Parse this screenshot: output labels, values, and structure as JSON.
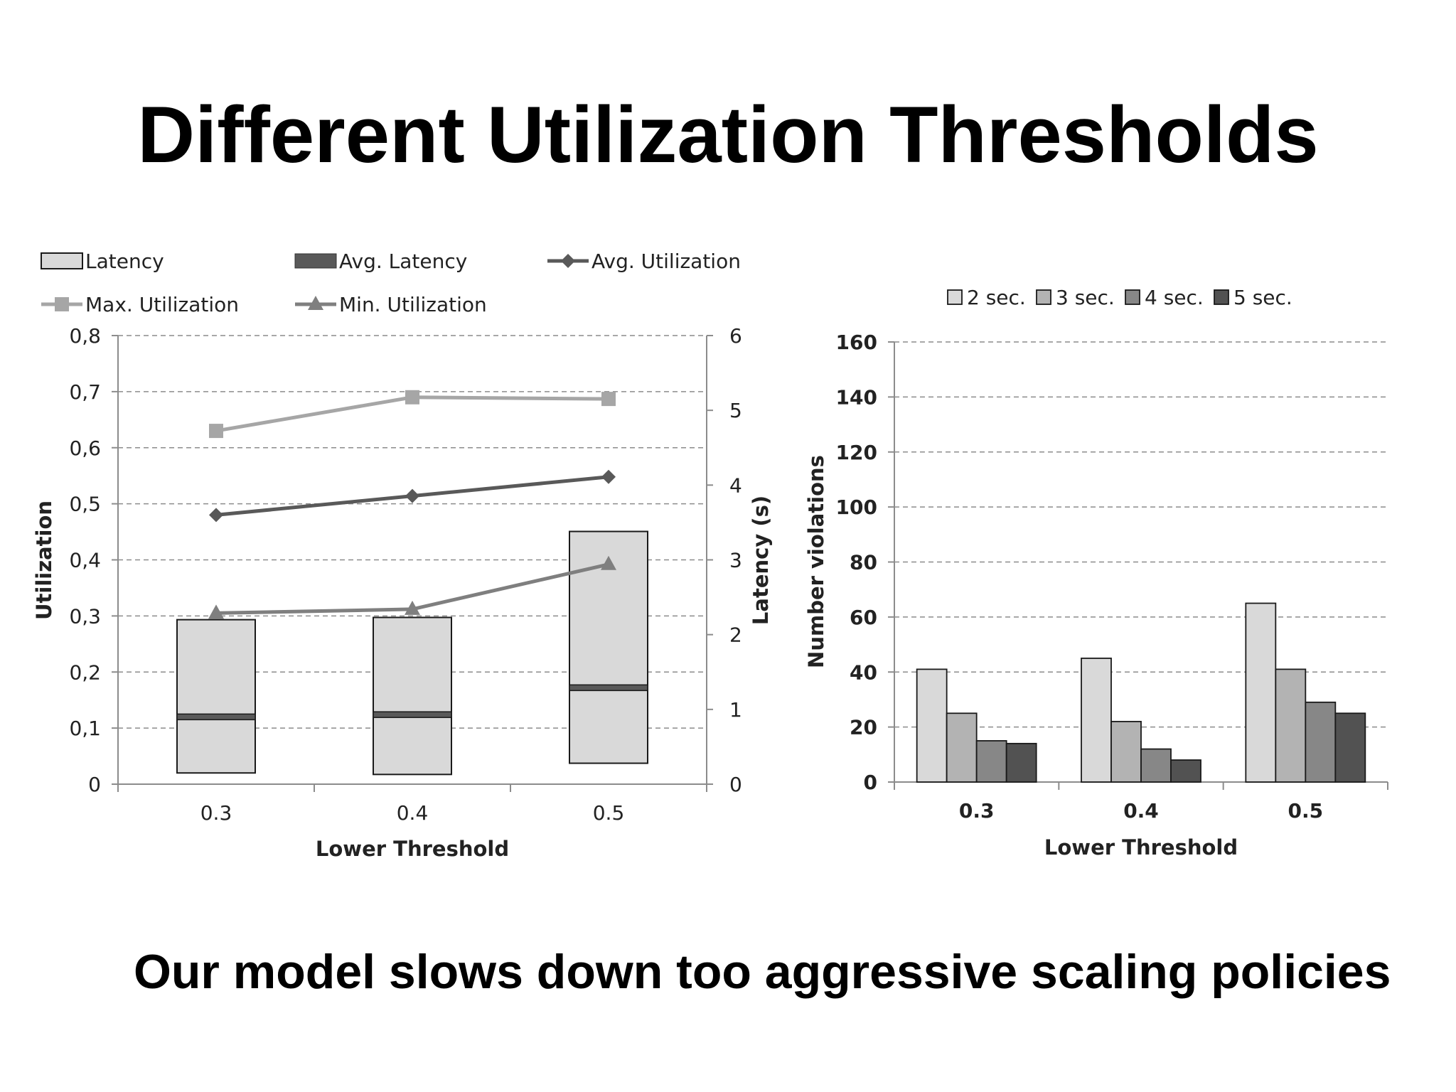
{
  "slide": {
    "title": "Different Utilization Thresholds",
    "caption": "Our model slows down too aggressive scaling policies"
  },
  "colors": {
    "latency_box": "#d9d9d9",
    "avg_latency": "#595959",
    "avg_utilization": "#595959",
    "max_utilization": "#a6a6a6",
    "min_utilization": "#7f7f7f",
    "bar_2sec": "#d9d9d9",
    "bar_3sec": "#b3b3b3",
    "bar_4sec": "#878787",
    "bar_5sec": "#525252"
  },
  "chart_data": [
    {
      "type": "bar",
      "xlabel": "Lower Threshold",
      "ylabel": "Utilization",
      "y2label": "Latency (s)",
      "categories": [
        "0.3",
        "0.4",
        "0.5"
      ],
      "ylim": [
        0,
        0.8
      ],
      "y_ticks": [
        "0",
        "0,1",
        "0,2",
        "0,3",
        "0,4",
        "0,5",
        "0,6",
        "0,7",
        "0,8"
      ],
      "y2lim": [
        0,
        6
      ],
      "y2_ticks": [
        "0",
        "1",
        "2",
        "3",
        "4",
        "5",
        "6"
      ],
      "grid": true,
      "legend_position": "top",
      "legend": [
        "Latency",
        "Avg. Latency",
        "Avg. Utilization",
        "Max. Utilization",
        "Min. Utilization"
      ],
      "latency_range": [
        {
          "low": 0.15,
          "high": 2.2
        },
        {
          "low": 0.13,
          "high": 2.23
        },
        {
          "low": 0.28,
          "high": 3.38
        }
      ],
      "avg_latency": [
        0.9,
        0.93,
        1.29
      ],
      "series": [
        {
          "name": "Avg. Utilization",
          "axis": "left",
          "values": [
            0.48,
            0.514,
            0.548
          ]
        },
        {
          "name": "Max. Utilization",
          "axis": "left",
          "values": [
            0.63,
            0.69,
            0.687
          ]
        },
        {
          "name": "Min. Utilization",
          "axis": "left",
          "values": [
            0.305,
            0.312,
            0.392
          ]
        }
      ]
    },
    {
      "type": "bar",
      "xlabel": "Lower Threshold",
      "ylabel": "Number violations",
      "categories": [
        "0.3",
        "0.4",
        "0.5"
      ],
      "ylim": [
        0,
        160
      ],
      "y_ticks": [
        "0",
        "20",
        "40",
        "60",
        "80",
        "100",
        "120",
        "140",
        "160"
      ],
      "grid": true,
      "legend_position": "top",
      "series": [
        {
          "name": "2 sec.",
          "values": [
            41,
            45,
            65
          ]
        },
        {
          "name": "3 sec.",
          "values": [
            25,
            22,
            41
          ]
        },
        {
          "name": "4 sec.",
          "values": [
            15,
            12,
            29
          ]
        },
        {
          "name": "5 sec.",
          "values": [
            14,
            8,
            25
          ]
        }
      ]
    }
  ]
}
